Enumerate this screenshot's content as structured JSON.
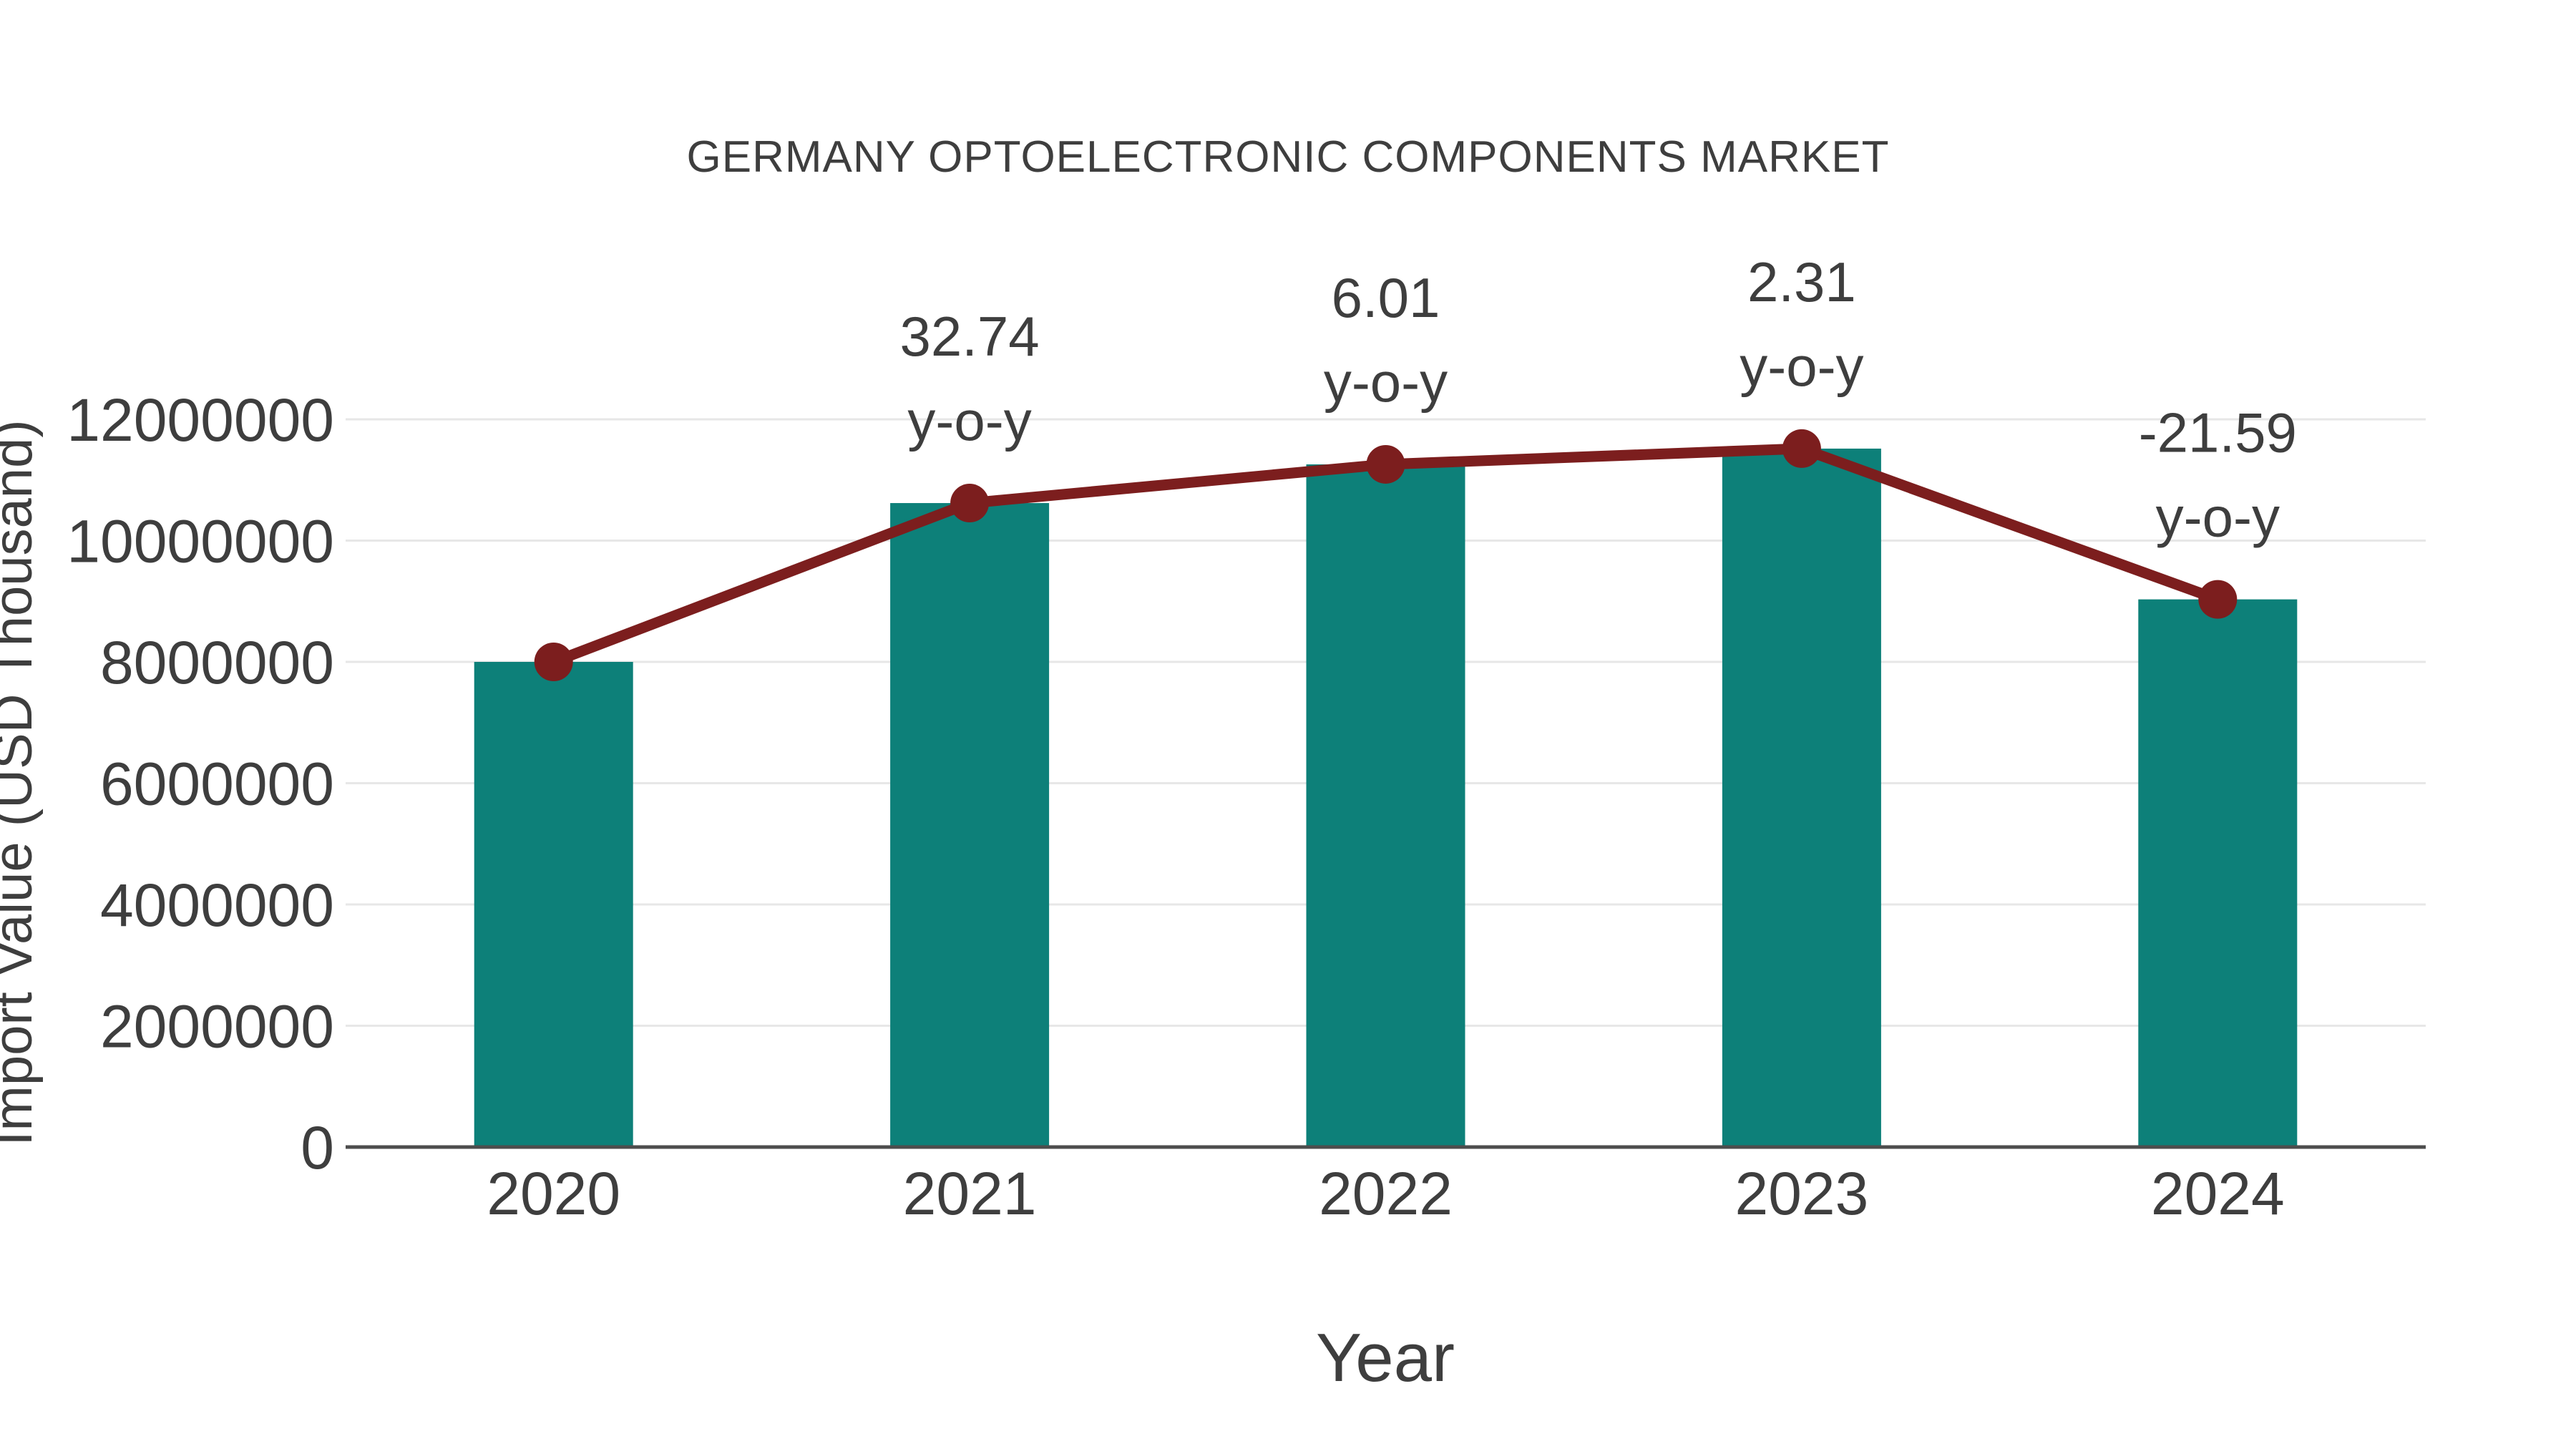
{
  "chart_data": {
    "type": "bar",
    "title": "GERMANY OPTOELECTRONIC COMPONENTS MARKET",
    "xlabel": "Year",
    "ylabel": "Import Value (USD Thousand)",
    "categories": [
      "2020",
      "2021",
      "2022",
      "2023",
      "2024"
    ],
    "values": [
      8000000,
      10619000,
      11257000,
      11517000,
      9031000
    ],
    "overlay_line": {
      "type": "line",
      "passes_through": "bar-tops",
      "marker": "circle"
    },
    "yoy_labels": [
      null,
      "32.74",
      "6.01",
      "2.31",
      "-21.59"
    ],
    "yoy_suffix": "y-o-y",
    "ylim": [
      0,
      12000000
    ],
    "ytick_step": 2000000,
    "ytick_labels": [
      "0",
      "2000000",
      "4000000",
      "6000000",
      "8000000",
      "10000000",
      "12000000"
    ],
    "grid": "horizontal",
    "legend": "none",
    "colors": {
      "bar": "#0d8079",
      "line": "#7c1e1e",
      "marker": "#7c1e1e",
      "text": "#3e3e3e",
      "grid": "#e7e7e7",
      "axis": "#4d4d4d",
      "background": "#ffffff"
    }
  }
}
